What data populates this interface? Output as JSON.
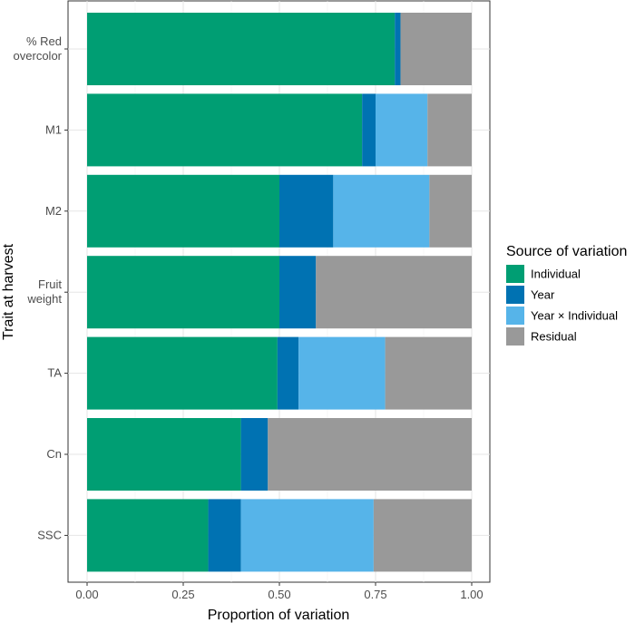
{
  "chart_data": {
    "type": "bar",
    "orientation": "horizontal",
    "stacked": true,
    "title": "",
    "xlabel": "Proportion of variation",
    "ylabel": "Trait at harvest",
    "xlim": [
      0,
      1
    ],
    "x_ticks": [
      "0.00",
      "0.25",
      "0.50",
      "0.75",
      "1.00"
    ],
    "x_tick_values": [
      0,
      0.25,
      0.5,
      0.75,
      1
    ],
    "grid": true,
    "legend": {
      "title": "Source of variation",
      "position": "right"
    },
    "categories": [
      {
        "label": [
          "% Red",
          "overcolor"
        ]
      },
      {
        "label": [
          "M1"
        ]
      },
      {
        "label": [
          "M2"
        ]
      },
      {
        "label": [
          "Fruit",
          "weight"
        ]
      },
      {
        "label": [
          "TA"
        ]
      },
      {
        "label": [
          "Cn"
        ]
      },
      {
        "label": [
          "SSC"
        ]
      }
    ],
    "series": [
      {
        "name": "Individual",
        "color": "#009E73",
        "values": [
          0.8,
          0.715,
          0.5,
          0.5,
          0.495,
          0.4,
          0.315
        ]
      },
      {
        "name": "Year",
        "color": "#0072B2",
        "values": [
          0.015,
          0.035,
          0.14,
          0.095,
          0.055,
          0.07,
          0.085
        ]
      },
      {
        "name": "Year × Individual",
        "color": "#56B4E9",
        "values": [
          0.0,
          0.135,
          0.25,
          0.0,
          0.225,
          0.0,
          0.345
        ]
      },
      {
        "name": "Residual",
        "color": "#999999",
        "values": [
          0.185,
          0.115,
          0.11,
          0.405,
          0.225,
          0.53,
          0.255
        ]
      }
    ]
  }
}
